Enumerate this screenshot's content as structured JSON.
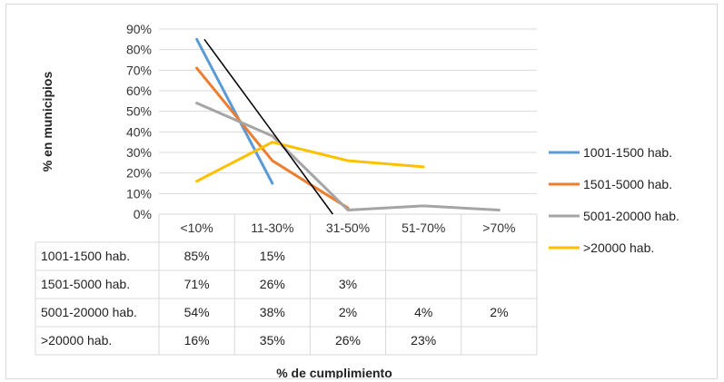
{
  "chart_data": {
    "type": "line",
    "title": "",
    "xlabel": "% de cumplimiento",
    "ylabel": "% en municipios",
    "categories": [
      "<10%",
      "11-30%",
      "31-50%",
      "51-70%",
      ">70%"
    ],
    "ylim": [
      0,
      90
    ],
    "yticks": [
      "0%",
      "10%",
      "20%",
      "30%",
      "40%",
      "50%",
      "60%",
      "70%",
      "80%",
      "90%"
    ],
    "grid": true,
    "legend_position": "right",
    "series": [
      {
        "name": "1001-1500 hab.",
        "color": "#5B9BD5",
        "values": [
          85,
          15,
          null,
          null,
          null
        ],
        "labels": [
          "85%",
          "15%",
          "",
          "",
          ""
        ]
      },
      {
        "name": "1501-5000 hab.",
        "color": "#ED7D31",
        "values": [
          71,
          26,
          3,
          null,
          null
        ],
        "labels": [
          "71%",
          "26%",
          "3%",
          "",
          ""
        ]
      },
      {
        "name": "5001-20000 hab.",
        "color": "#A5A5A5",
        "values": [
          54,
          38,
          2,
          4,
          2
        ],
        "labels": [
          "54%",
          "38%",
          "2%",
          "4%",
          "2%"
        ]
      },
      {
        "name": ">20000 hab.",
        "color": "#FFC000",
        "values": [
          16,
          35,
          26,
          23,
          null
        ],
        "labels": [
          "16%",
          "35%",
          "26%",
          "23%",
          ""
        ]
      }
    ],
    "trendline": {
      "color": "#000000",
      "from": {
        "x": 0.1,
        "y": 85
      },
      "to": {
        "x": 1.8,
        "y": 0
      }
    }
  }
}
